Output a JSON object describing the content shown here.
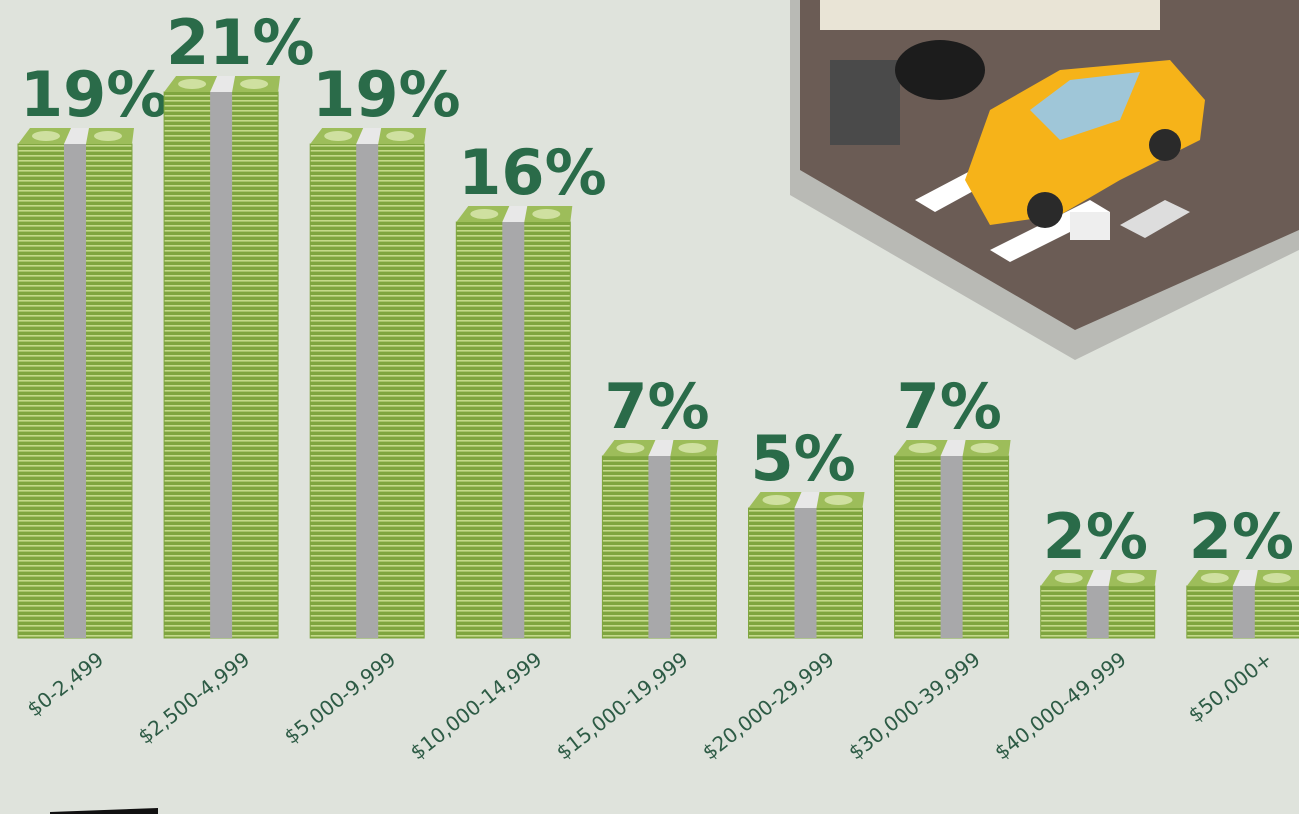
{
  "chart_data": {
    "type": "bar",
    "categories": [
      "$0-2,499",
      "$2,500-4,999",
      "$5,000-9,999",
      "$10,000-14,999",
      "$15,000-19,999",
      "$20,000-29,999",
      "$30,000-39,999",
      "$40,000-49,999",
      "$50,000+"
    ],
    "values": [
      19,
      21,
      19,
      16,
      7,
      5,
      7,
      2,
      2
    ],
    "value_labels": [
      "19%",
      "21%",
      "19%",
      "16%",
      "7%",
      "5%",
      "7%",
      "2%",
      "2%"
    ],
    "color": "#7fa53f"
  }
}
